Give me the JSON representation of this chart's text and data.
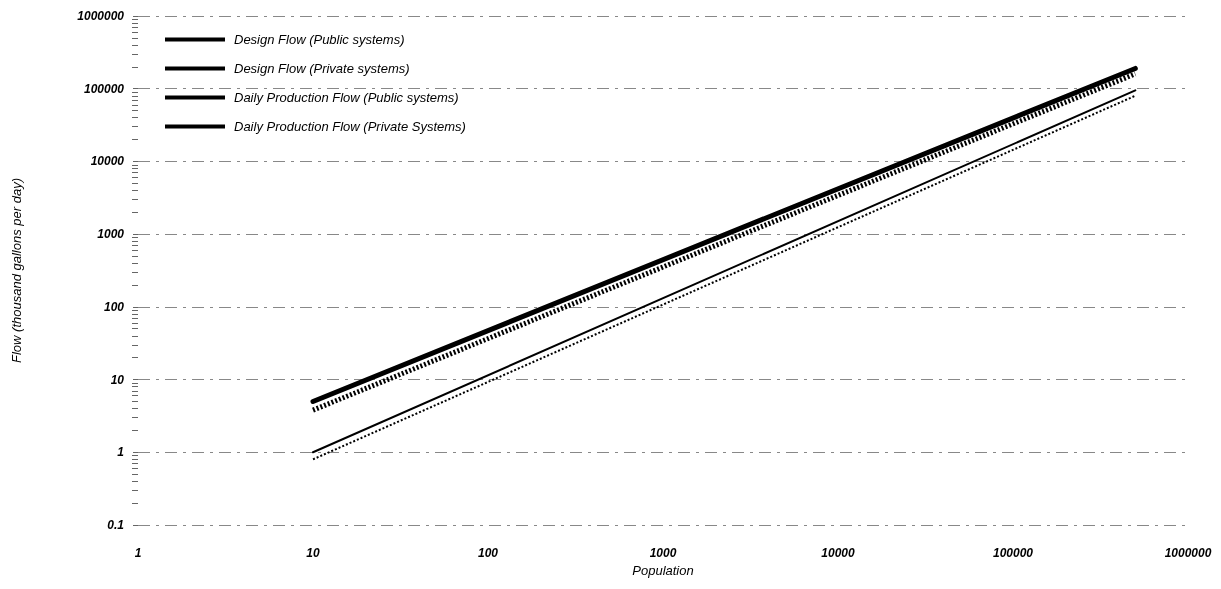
{
  "chart_data": {
    "type": "line",
    "xlabel": "Population",
    "ylabel": "Flow (thousand gallons per day)",
    "x": [
      10,
      500000
    ],
    "series": [
      {
        "name": "Design Flow (Public systems)",
        "color": "#000000",
        "line_style": "solid",
        "values": [
          5,
          190000
        ]
      },
      {
        "name": "Design Flow (Private systems)",
        "color": "#000000",
        "line_style": "dotted",
        "values": [
          3.8,
          160000
        ]
      },
      {
        "name": "Daily Production Flow (Public systems)",
        "color": "#000000",
        "line_style": "solid",
        "values": [
          1,
          95000
        ]
      },
      {
        "name": "Daily Production Flow (Private Systems)",
        "color": "#000000",
        "line_style": "dotted",
        "values": [
          0.8,
          80000
        ]
      }
    ],
    "log": "xy",
    "xlim": [
      1,
      1000000
    ],
    "xticks": [
      1,
      10,
      100,
      1000,
      10000,
      100000,
      1000000
    ],
    "ylim": [
      0.1,
      1000000
    ],
    "yticks": [
      0.1,
      1,
      10,
      100,
      1000,
      10000,
      100000,
      1000000
    ],
    "grid": "y",
    "legend": "top left",
    "marker": "none"
  }
}
